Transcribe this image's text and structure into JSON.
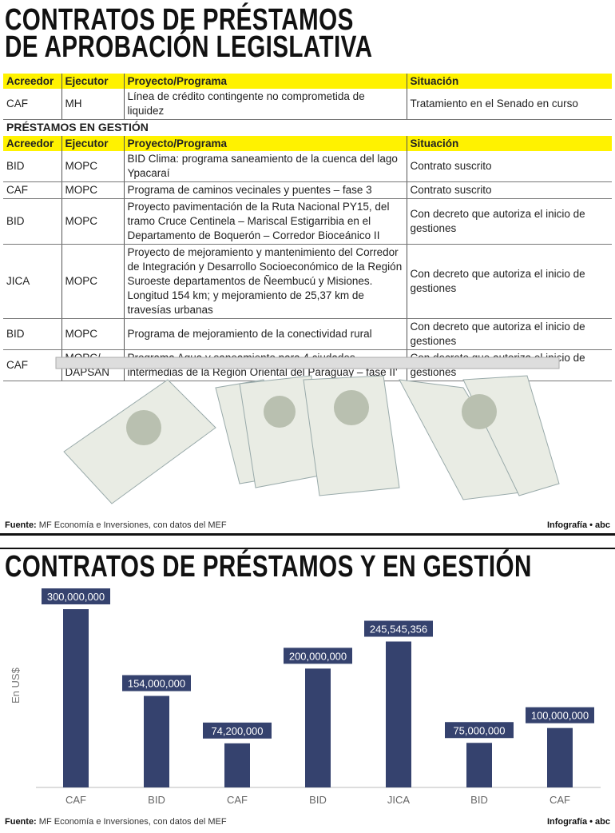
{
  "title1_line1": "CONTRATOS DE PRÉSTAMOS",
  "title1_line2": "DE APROBACIÓN LEGISLATIVA",
  "headers": [
    "Acreedor",
    "Ejecutor",
    "Proyecto/Programa",
    "Situación"
  ],
  "approval_rows": [
    [
      "CAF",
      "MH",
      "Línea de crédito contingente no comprometida de liquidez",
      "Tratamiento en el Senado en curso"
    ]
  ],
  "gestion_title": "PRÉSTAMOS EN GESTIÓN",
  "gestion_rows": [
    [
      "BID",
      "MOPC",
      "BID Clima: programa saneamiento de la cuenca del lago Ypacaraí",
      "Contrato suscrito"
    ],
    [
      "CAF",
      "MOPC",
      "Programa de caminos vecinales y puentes – fase 3",
      "Contrato suscrito"
    ],
    [
      "BID",
      "MOPC",
      "Proyecto pavimentación de la Ruta Nacional PY15, del tramo Cruce Centinela – Mariscal Estigarribia en el Departamento de Boquerón – Corredor Bioceánico II",
      "Con decreto que autoriza el inicio de gestiones"
    ],
    [
      "JICA",
      "MOPC",
      "Proyecto de mejoramiento y mantenimiento del Corredor de Integración y Desarrollo Socioeconómico de la Región Suroeste departamentos de Ñeembucú y Misiones. Longitud 154 km; y mejoramiento de 25,37 km de travesías urbanas",
      "Con decreto que autoriza el inicio de gestiones"
    ],
    [
      "BID",
      "MOPC",
      "Programa de mejoramiento de la conectividad rural",
      "Con decreto que autoriza el inicio de gestiones"
    ],
    [
      "CAF",
      "MOPC/ DAPSAN",
      "Programa Agua y saneamiento para 4 ciudades intermedias de la Región Oriental del Paraguay – fase II'",
      "Con decreto que autoriza el inicio de gestiones"
    ]
  ],
  "footer": {
    "source_label": "Fuente:",
    "source_text": "MF Economía e Inversiones, con datos del MEF",
    "brand": "Infografía • abc"
  },
  "colors": {
    "header_yellow": "#fff200",
    "bar": "#35426e"
  },
  "chart_data": {
    "type": "bar",
    "title": "CONTRATOS DE PRÉSTAMOS Y EN GESTIÓN",
    "ylabel": "En US$",
    "categories": [
      "CAF",
      "BID",
      "CAF",
      "BID",
      "JICA",
      "BID",
      "CAF"
    ],
    "values": [
      300000000,
      154000000,
      74200000,
      200000000,
      245545356,
      75000000,
      100000000
    ],
    "data_labels": [
      "300,000,000",
      "154,000,000",
      "74,200,000",
      "200,000,000",
      "245,545,356",
      "75,000,000",
      "100,000,000"
    ],
    "ylim": [
      0,
      300000000
    ],
    "grid": false
  }
}
